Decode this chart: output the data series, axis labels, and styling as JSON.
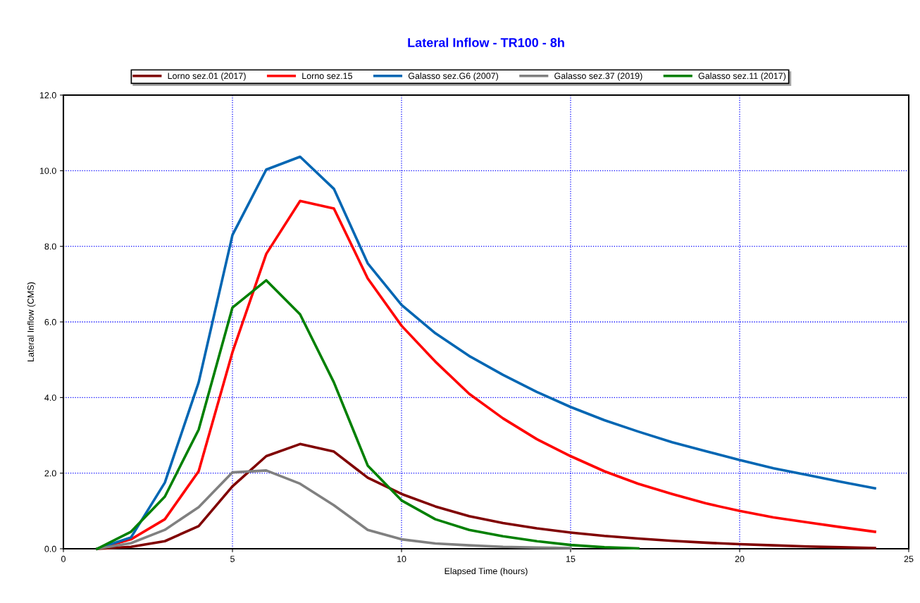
{
  "chart_data": {
    "type": "line",
    "title": "Lateral Inflow - TR100 - 8h",
    "xlabel": "Elapsed Time (hours)",
    "ylabel": "Lateral Inflow (CMS)",
    "x": [
      1,
      2,
      3,
      4,
      5,
      6,
      7,
      8,
      9,
      10,
      11,
      12,
      13,
      14,
      15,
      16,
      17,
      18,
      19,
      20,
      21,
      22,
      23,
      24
    ],
    "series": [
      {
        "name": "Lorno sez.01 (2017)",
        "color": "#800000",
        "values": [
          0,
          0.05,
          0.2,
          0.6,
          1.65,
          2.45,
          2.77,
          2.57,
          1.88,
          1.45,
          1.12,
          0.86,
          0.68,
          0.54,
          0.43,
          0.34,
          0.27,
          0.21,
          0.16,
          0.12,
          0.09,
          0.06,
          0.04,
          0.02
        ]
      },
      {
        "name": "Lorno sez.15",
        "color": "#ff0000",
        "values": [
          0,
          0.25,
          0.78,
          2.05,
          5.2,
          7.8,
          9.2,
          9.0,
          7.15,
          5.9,
          4.95,
          4.1,
          3.45,
          2.9,
          2.45,
          2.05,
          1.72,
          1.45,
          1.2,
          1.0,
          0.83,
          0.7,
          0.57,
          0.45
        ]
      },
      {
        "name": "Galasso sez.G6 (2007)",
        "color": "#0066b3",
        "values": [
          0,
          0.3,
          1.75,
          4.4,
          8.3,
          10.03,
          10.37,
          9.52,
          7.55,
          6.45,
          5.7,
          5.1,
          4.6,
          4.15,
          3.75,
          3.4,
          3.1,
          2.82,
          2.58,
          2.35,
          2.13,
          1.95,
          1.77,
          1.6
        ]
      },
      {
        "name": "Galasso sez.37 (2019)",
        "color": "#808080",
        "values": [
          0,
          0.15,
          0.5,
          1.1,
          2.02,
          2.07,
          1.72,
          1.15,
          0.5,
          0.25,
          0.14,
          0.09,
          0.05,
          0.03,
          0.02,
          null,
          null,
          null,
          null,
          null,
          null,
          null,
          null,
          null
        ]
      },
      {
        "name": "Galasso sez.11 (2017)",
        "color": "#008000",
        "values": [
          0,
          0.45,
          1.38,
          3.15,
          6.38,
          7.1,
          6.2,
          4.4,
          2.2,
          1.28,
          0.78,
          0.5,
          0.33,
          0.2,
          0.1,
          0.04,
          0.01,
          null,
          null,
          null,
          null,
          null,
          null,
          null
        ]
      }
    ],
    "xlim": [
      0,
      25
    ],
    "xticks": [
      0,
      5,
      10,
      15,
      20,
      25
    ],
    "ylim": [
      0,
      12
    ],
    "yticks": [
      {
        "value": 0,
        "label": "0.0"
      },
      {
        "value": 2,
        "label": "2.0"
      },
      {
        "value": 4,
        "label": "4.0"
      },
      {
        "value": 6,
        "label": "6.0"
      },
      {
        "value": 8,
        "label": "8.0"
      },
      {
        "value": 10,
        "label": "10.0"
      },
      {
        "value": 12,
        "label": "12.0"
      }
    ],
    "grid": true,
    "legend": "top",
    "marker": "none",
    "line_style": "solid"
  }
}
